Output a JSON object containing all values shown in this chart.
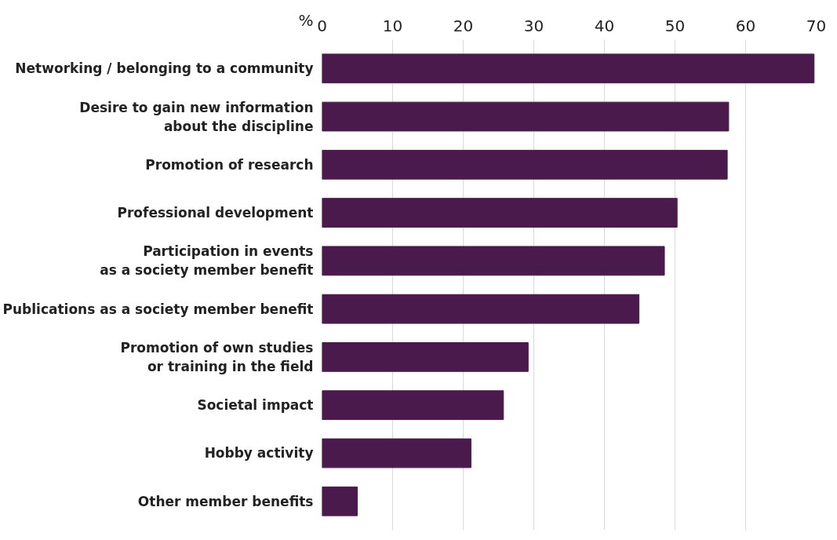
{
  "chart_data": {
    "type": "bar",
    "orientation": "horizontal",
    "xlabel": "%",
    "categories": [
      "Networking / belonging to a community",
      "Desire to gain new information\nabout the discipline",
      "Promotion of research",
      "Professional development",
      "Participation in events\nas a society member benefit",
      "Publications as a society member benefit",
      "Promotion of own studies\nor training in the field",
      "Societal impact",
      "Hobby activity",
      "Other member benefits"
    ],
    "values": [
      69.7,
      57.6,
      57.4,
      50.3,
      48.5,
      44.9,
      29.2,
      25.7,
      21.1,
      5.0
    ],
    "color": "#4b1a4c",
    "xlim": [
      0,
      70
    ],
    "xticks": [
      0,
      10,
      20,
      30,
      40,
      50,
      60,
      70
    ],
    "grid": "x"
  }
}
